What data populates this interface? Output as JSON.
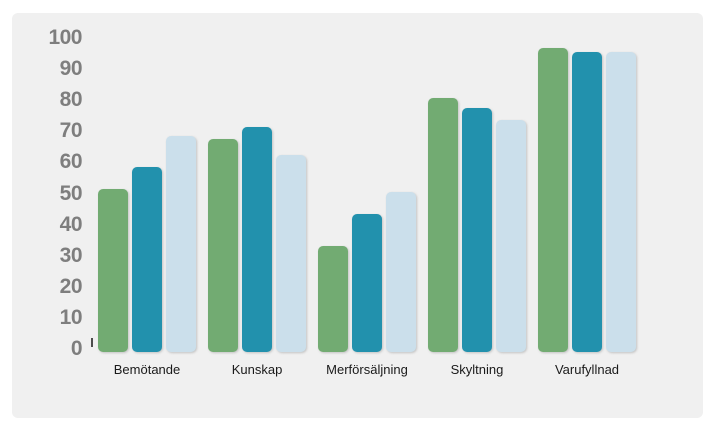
{
  "colors": {
    "page_background": "#ffffff",
    "card_background": "#f0f0f0",
    "tick_label": "#7e7e7e",
    "category_label": "#1a1a1a",
    "axis_tick": "#4d4d4d"
  },
  "chart_data": {
    "type": "bar",
    "title": "",
    "xlabel": "",
    "ylabel": "",
    "categories": [
      "Bemötande",
      "Kunskap",
      "Merförsäljning",
      "Skyltning",
      "Varufyllnad"
    ],
    "series": [
      {
        "name": "series-green",
        "color": "#72ab72",
        "values": [
          52,
          68,
          34,
          81,
          97
        ]
      },
      {
        "name": "series-teal",
        "color": "#2291ad",
        "values": [
          59,
          72,
          44,
          78,
          96
        ]
      },
      {
        "name": "series-lightblue",
        "color": "#cbdfeb",
        "values": [
          69,
          63,
          51,
          74,
          96
        ]
      }
    ],
    "ylim": [
      0,
      100
    ],
    "yticks": [
      0,
      10,
      20,
      30,
      40,
      50,
      60,
      70,
      80,
      90,
      100
    ],
    "grid": false,
    "legend": false
  }
}
